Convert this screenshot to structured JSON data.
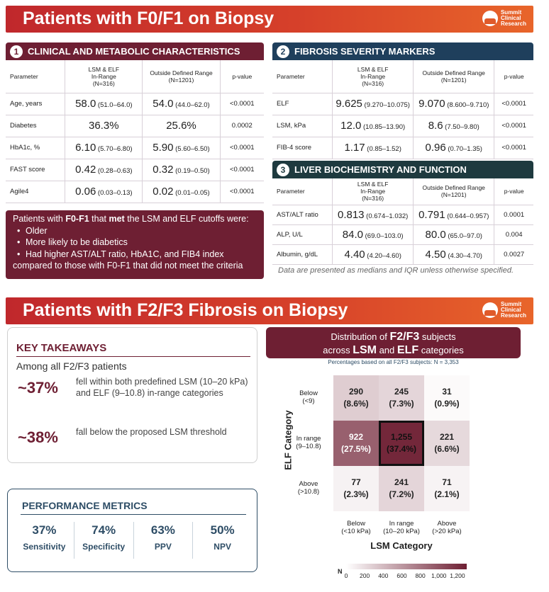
{
  "logo": {
    "text": "Summit\nClinical\nResearch"
  },
  "slide1": {
    "title": "Patients with F0/F1 on Biopsy",
    "panel1": {
      "num": "1",
      "title": "CLINICAL AND METABOLIC CHARACTERISTICS",
      "headers": [
        "Parameter",
        "LSM & ELF\nIn-Range\n(N=316)",
        "Outside Defined Range\n(N=1201)",
        "p-value"
      ],
      "rows": [
        {
          "param": "Age, years",
          "a": "58.0",
          "a_iqr": "(51.0–64.0)",
          "b": "54.0",
          "b_iqr": "(44.0–62.0)",
          "p": "<0.0001"
        },
        {
          "param": "Diabetes",
          "a": "36.3%",
          "a_iqr": "",
          "b": "25.6%",
          "b_iqr": "",
          "p": "0.0002"
        },
        {
          "param": "HbA1c, %",
          "a": "6.10",
          "a_iqr": "(5.70–6.80)",
          "b": "5.90",
          "b_iqr": "(5.60–6.50)",
          "p": "<0.0001"
        },
        {
          "param": "FAST score",
          "a": "0.42",
          "a_iqr": "(0.28–0.63)",
          "b": "0.32",
          "b_iqr": "(0.19–0.50)",
          "p": "<0.0001"
        },
        {
          "param": "Agile4",
          "a": "0.06",
          "a_iqr": "(0.03–0.13)",
          "b": "0.02",
          "b_iqr": "(0.01–0.05)",
          "p": "<0.0001"
        }
      ]
    },
    "panel2": {
      "num": "2",
      "title": "FIBROSIS SEVERITY MARKERS",
      "headers": [
        "Parameter",
        "LSM & ELF\nIn-Range\n(N=316)",
        "Outside Defined Range\n(N=1201)",
        "p-value"
      ],
      "rows": [
        {
          "param": "ELF",
          "a": "9.625",
          "a_iqr": "(9.270–10.075)",
          "b": "9.070",
          "b_iqr": "(8.600–9.710)",
          "p": "<0.0001"
        },
        {
          "param": "LSM, kPa",
          "a": "12.0",
          "a_iqr": "(10.85–13.90)",
          "b": "8.6",
          "b_iqr": "(7.50–9.80)",
          "p": "<0.0001"
        },
        {
          "param": "FIB-4 score",
          "a": "1.17",
          "a_iqr": "(0.85–1.52)",
          "b": "0.96",
          "b_iqr": "(0.70–1.35)",
          "p": "<0.0001"
        }
      ]
    },
    "panel3": {
      "num": "3",
      "title": "LIVER BIOCHEMISTRY AND FUNCTION",
      "headers": [
        "Parameter",
        "LSM & ELF\nIn-Range\n(N=316)",
        "Outside Defined Range\n(N=1201)",
        "p-value"
      ],
      "rows": [
        {
          "param": "AST/ALT ratio",
          "a": "0.813",
          "a_iqr": "(0.674–1.032)",
          "b": "0.791",
          "b_iqr": "(0.644–0.957)",
          "p": "0.0001"
        },
        {
          "param": "ALP, U/L",
          "a": "84.0",
          "a_iqr": "(69.0–103.0)",
          "b": "80.0",
          "b_iqr": "(65.0–97.0)",
          "p": "0.004"
        },
        {
          "param": "Albumin, g/dL",
          "a": "4.40",
          "a_iqr": "(4.20–4.60)",
          "b": "4.50",
          "b_iqr": "(4.30–4.70)",
          "p": "0.0027"
        }
      ]
    },
    "summary": {
      "intro_pre": "Patients with ",
      "intro_bold1": "F0-F1",
      "intro_mid": " that ",
      "intro_bold2": "met",
      "intro_post": " the LSM and ELF cutoffs were:",
      "bullets": [
        "Older",
        "More likely to be diabetics",
        "Had higher AST/ALT ratio, HbA1C, and FIB4 index"
      ],
      "closing": "compared to those with F0-F1 that did not meet the criteria"
    },
    "note": "Data are presented as medians and IQR unless otherwise specified."
  },
  "slide2": {
    "title": "Patients with F2/F3 Fibrosis on Biopsy",
    "key": {
      "heading": "KEY TAKEAWAYS",
      "sub": "Among all F2/F3 patients",
      "item1_pct": "~37%",
      "item1_text": "fell within both predefined LSM (10–20 kPa) and ELF (9–10.8) in-range categories",
      "item2_pct": "~38%",
      "item2_text": "fall below the proposed LSM threshold"
    },
    "perf": {
      "heading": "PERFORMANCE METRICS",
      "metrics": [
        {
          "value": "37%",
          "label": "Sensitivity"
        },
        {
          "value": "74%",
          "label": "Specificity"
        },
        {
          "value": "63%",
          "label": "PPV"
        },
        {
          "value": "50%",
          "label": "NPV"
        }
      ]
    },
    "dist": {
      "title_pre": "Distribution of ",
      "title_b1": "F2/F3",
      "title_mid1": " subjects",
      "title_line2_pre": "across ",
      "title_b2": "LSM",
      "title_and": " and ",
      "title_b3": "ELF",
      "title_post": " categories",
      "subtitle": "Percentages based on all F2/F3 subjects: N = 3,353"
    }
  },
  "chart_data": {
    "type": "heatmap",
    "title": "Distribution of F2/F3 subjects across LSM and ELF categories",
    "subtitle": "Percentages based on all F2/F3 subjects: N = 3,353",
    "xlabel": "LSM Category",
    "ylabel": "ELF Category",
    "x_categories": [
      "Below\n(<10 kPa)",
      "In range\n(10–20 kPa)",
      "Above\n(>20 kPa)"
    ],
    "y_categories": [
      "Below\n(<9)",
      "In range\n(9–10.8)",
      "Above\n(>10.8)"
    ],
    "values": [
      [
        290,
        245,
        31
      ],
      [
        922,
        1255,
        221
      ],
      [
        77,
        241,
        71
      ]
    ],
    "percents": [
      [
        "(8.6%)",
        "(7.3%)",
        "(0.9%)"
      ],
      [
        "(27.5%)",
        "(37.4%)",
        "(6.6%)"
      ],
      [
        "(2.3%)",
        "(7.2%)",
        "(2.1%)"
      ]
    ],
    "labels": [
      [
        "290",
        "245",
        "31"
      ],
      [
        "922",
        "1,255",
        "221"
      ],
      [
        "77",
        "241",
        "71"
      ]
    ],
    "highlight": [
      1,
      1
    ],
    "colorbar": {
      "label": "N",
      "ticks": [
        "0",
        "200",
        "400",
        "600",
        "800",
        "1,000",
        "1,200"
      ],
      "max": 1300
    }
  }
}
